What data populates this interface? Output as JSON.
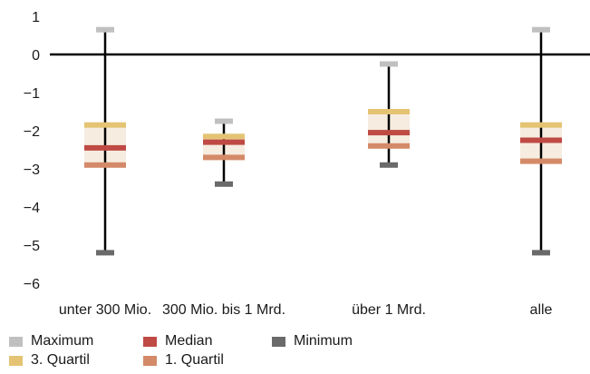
{
  "chart_data": {
    "type": "boxplot",
    "ylim": [
      -6,
      1
    ],
    "yticks": [
      "1",
      "0",
      "−1",
      "−2",
      "−3",
      "−4",
      "−5",
      "−6"
    ],
    "ytick_values": [
      1,
      0,
      -1,
      -2,
      -3,
      -4,
      -5,
      -6
    ],
    "categories": [
      "unter 300 Mio.",
      "300 Mio. bis 1 Mrd.",
      "über 1 Mrd.",
      "alle"
    ],
    "series": [
      {
        "name": "Maximum",
        "values": [
          0.65,
          -1.75,
          -0.25,
          0.65
        ]
      },
      {
        "name": "3. Quartil",
        "values": [
          -1.85,
          -2.15,
          -1.5,
          -1.85
        ]
      },
      {
        "name": "Median",
        "values": [
          -2.45,
          -2.3,
          -2.05,
          -2.25
        ]
      },
      {
        "name": "1. Quartil",
        "values": [
          -2.9,
          -2.7,
          -2.4,
          -2.8
        ]
      },
      {
        "name": "Minimum",
        "values": [
          -5.2,
          -3.4,
          -2.9,
          -5.2
        ]
      }
    ],
    "legend": {
      "position": "bottom",
      "items": [
        "Maximum",
        "Median",
        "Minimum",
        "3. Quartil",
        "1. Quartil"
      ]
    },
    "colors": {
      "Maximum": "#c0c0c0",
      "3. Quartil": "#e4c474",
      "Median": "#bf4a44",
      "1. Quartil": "#d48a68",
      "Minimum": "#6a6a6a",
      "box_fill": "#f6ece0",
      "whisker": "#000000",
      "zero_line": "#000000"
    },
    "grid": false
  }
}
